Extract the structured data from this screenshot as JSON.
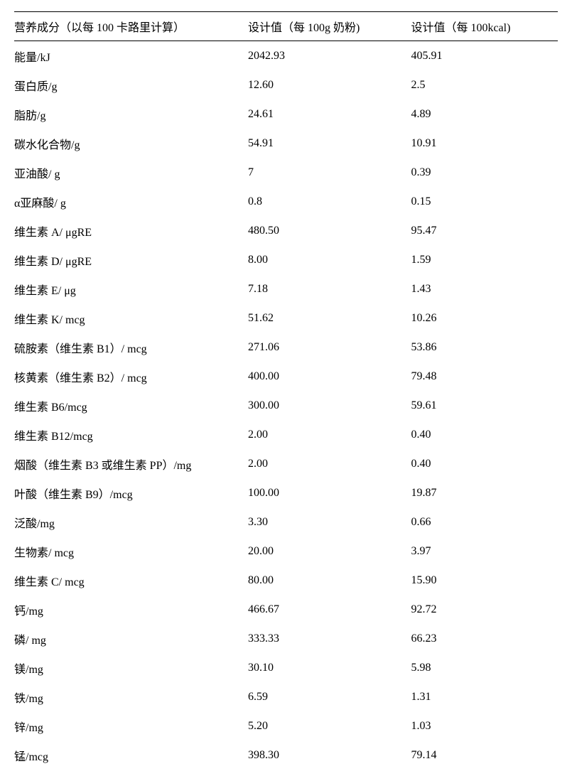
{
  "table": {
    "type": "table",
    "background_color": "#ffffff",
    "text_color": "#000000",
    "border_color": "#000000",
    "font_family": "SimSun",
    "font_size_pt": 12,
    "column_widths_pct": [
      43,
      30,
      27
    ],
    "columns": [
      "营养成分（以每 100 卡路里计算）",
      "设计值（每 100g 奶粉)",
      "设计值（每 100kcal)"
    ],
    "rows": [
      [
        "能量/kJ",
        "2042.93",
        "405.91"
      ],
      [
        "蛋白质/g",
        "12.60",
        "2.5"
      ],
      [
        "脂肪/g",
        "24.61",
        "4.89"
      ],
      [
        "碳水化合物/g",
        "54.91",
        "10.91"
      ],
      [
        "亚油酸/ g",
        "7",
        "0.39"
      ],
      [
        "α亚麻酸/ g",
        "0.8",
        "0.15"
      ],
      [
        "维生素 A/ μgRE",
        "480.50",
        "95.47"
      ],
      [
        "维生素 D/ μgRE",
        "8.00",
        "1.59"
      ],
      [
        "维生素 E/ μg",
        "7.18",
        "1.43"
      ],
      [
        "维生素 K/ mcg",
        "51.62",
        "10.26"
      ],
      [
        "硫胺素（维生素 B1）/ mcg",
        "271.06",
        "53.86"
      ],
      [
        "核黄素（维生素 B2）/ mcg",
        "400.00",
        "79.48"
      ],
      [
        "维生素 B6/mcg",
        "300.00",
        "59.61"
      ],
      [
        "维生素 B12/mcg",
        "2.00",
        "0.40"
      ],
      [
        "烟酸（维生素 B3 或维生素 PP）/mg",
        "2.00",
        "0.40"
      ],
      [
        "叶酸（维生素 B9）/mcg",
        "100.00",
        "19.87"
      ],
      [
        "泛酸/mg",
        "3.30",
        "0.66"
      ],
      [
        "生物素/ mcg",
        "20.00",
        "3.97"
      ],
      [
        "维生素 C/ mcg",
        "80.00",
        "15.90"
      ],
      [
        "钙/mg",
        "466.67",
        "92.72"
      ],
      [
        "磷/ mg",
        "333.33",
        "66.23"
      ],
      [
        "镁/mg",
        "30.10",
        "5.98"
      ],
      [
        "铁/mg",
        "6.59",
        "1.31"
      ],
      [
        "锌/mg",
        "5.20",
        "1.03"
      ],
      [
        "锰/mcg",
        "398.30",
        "79.14"
      ]
    ]
  }
}
